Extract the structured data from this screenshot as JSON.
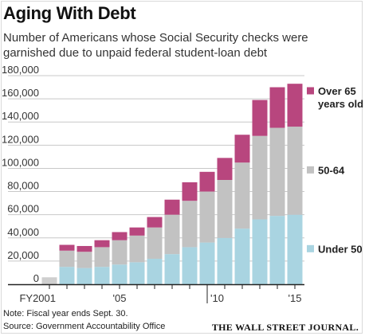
{
  "header": {
    "title": "Aging With Debt",
    "subtitle": "Number of Americans whose Social Security checks were garnished due to unpaid federal student-loan debt"
  },
  "footer": {
    "note": "Note: Fiscal year ends Sept. 30.",
    "source": "Source: Government Accountability Office",
    "credit": "THE WALL STREET JOURNAL."
  },
  "colors": {
    "under_50": "#a9d4e1",
    "age_50_64": "#c2c2c2",
    "over_65": "#b8467e",
    "fy2001_bar": "#cfcfcf",
    "gridline": "#c8c8c8",
    "axis": "#222222"
  },
  "chart_data": {
    "type": "bar",
    "stacked": true,
    "title": "Aging With Debt",
    "subtitle": "Number of Americans whose Social Security checks were garnished due to unpaid federal student-loan debt",
    "xlabel": "",
    "ylabel": "",
    "ylim": [
      0,
      180000
    ],
    "yticks": [
      0,
      20000,
      40000,
      60000,
      80000,
      100000,
      120000,
      140000,
      160000,
      180000
    ],
    "ytick_labels": [
      "0",
      "20,000",
      "40,000",
      "60,000",
      "80,000",
      "100,000",
      "120,000",
      "140,000",
      "160,000",
      "180,000"
    ],
    "grid": true,
    "legend": "right",
    "x": [
      2001,
      2002,
      2003,
      2004,
      2005,
      2006,
      2007,
      2008,
      2009,
      2010,
      2011,
      2012,
      2013,
      2014,
      2015
    ],
    "x_labels": [
      {
        "x": 2001,
        "label": "FY2001"
      },
      {
        "x": 2005,
        "label": "'05"
      },
      {
        "x": 2010,
        "label": "'10"
      },
      {
        "x": 2015,
        "label": "'15"
      }
    ],
    "fy2001_total": 6000,
    "series": [
      {
        "name": "Under 50",
        "key": "under_50",
        "values": [
          null,
          15000,
          14000,
          15000,
          17000,
          19000,
          22000,
          26000,
          32000,
          36000,
          40000,
          48000,
          56000,
          59000,
          60000
        ]
      },
      {
        "name": "50-64",
        "key": "age_50_64",
        "values": [
          null,
          14000,
          14000,
          17000,
          21000,
          23000,
          27000,
          34000,
          40000,
          44000,
          50000,
          57000,
          72000,
          76000,
          76000
        ]
      },
      {
        "name": "Over 65 years old",
        "key": "over_65",
        "values": [
          null,
          5000,
          5000,
          6000,
          7000,
          7000,
          9000,
          13000,
          16000,
          17000,
          19000,
          24000,
          31000,
          35000,
          37000
        ]
      }
    ],
    "legend_entries": [
      {
        "key": "over_65",
        "label_lines": [
          "Over 65",
          "years old"
        ]
      },
      {
        "key": "age_50_64",
        "label_lines": [
          "50-64"
        ]
      },
      {
        "key": "under_50",
        "label_lines": [
          "Under 50"
        ]
      }
    ]
  }
}
